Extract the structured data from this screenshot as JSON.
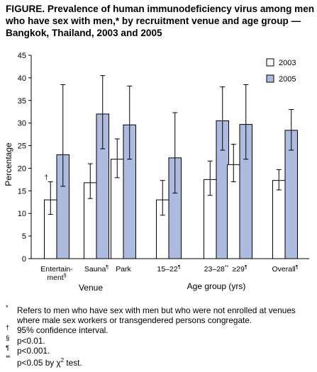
{
  "title": "FIGURE. Prevalence of human immunodeficiency virus among men who have sex with men,* by recruitment venue and age group — Bangkok, Thailand, 2003 and 2005",
  "chart_data": {
    "type": "bar",
    "ylabel": "Percentage",
    "ylim": [
      0,
      45
    ],
    "yticks": [
      0,
      5,
      10,
      15,
      20,
      25,
      30,
      35,
      40,
      45
    ],
    "grid": false,
    "legend_position": "top-right",
    "categories": [
      {
        "label": "Entertain-ment§",
        "lines": [
          "Entertain-",
          "ment"
        ],
        "mark": "§",
        "group": "Venue"
      },
      {
        "label": "Sauna¶",
        "lines": [
          "Sauna"
        ],
        "mark": "¶",
        "group": "Venue"
      },
      {
        "label": "Park",
        "lines": [
          "Park"
        ],
        "mark": "",
        "group": "Venue"
      },
      {
        "label": "15–22¶",
        "lines": [
          "15–22"
        ],
        "mark": "¶",
        "group": "Age group (yrs)"
      },
      {
        "label": "23–28**",
        "lines": [
          "23–28"
        ],
        "mark": "**",
        "group": "Age group (yrs)"
      },
      {
        "label": "≥29¶",
        "lines": [
          "≥29"
        ],
        "mark": "¶",
        "group": "Age group (yrs)"
      },
      {
        "label": "Overall¶",
        "lines": [
          "Overall"
        ],
        "mark": "¶",
        "group": ""
      }
    ],
    "groups": [
      "Venue",
      "Age group (yrs)"
    ],
    "series": [
      {
        "name": "2003",
        "color": "#ffffff",
        "values": [
          13.0,
          16.8,
          22.0,
          13.0,
          17.5,
          20.8,
          17.3
        ],
        "ci_low": [
          9.8,
          13.3,
          17.9,
          9.6,
          14.0,
          17.0,
          15.2
        ],
        "ci_high": [
          17.0,
          21.0,
          26.5,
          17.3,
          21.6,
          25.3,
          19.7
        ]
      },
      {
        "name": "2005",
        "color": "#aebbe0",
        "values": [
          23.0,
          32.0,
          29.6,
          22.3,
          30.5,
          29.7,
          28.4
        ],
        "ci_low": [
          16.0,
          24.3,
          22.0,
          14.5,
          24.0,
          22.0,
          24.0
        ],
        "ci_high": [
          38.5,
          40.5,
          38.2,
          32.3,
          38.0,
          38.5,
          33.0
        ]
      }
    ],
    "annotation": "†"
  },
  "footnotes": [
    {
      "mark": "*",
      "text": "Refers to men who have sex with men but who were not enrolled at venues where male sex workers or transgendered persons congregate."
    },
    {
      "mark": "†",
      "text": "95% confidence interval."
    },
    {
      "mark": "§",
      "text": "p<0.01."
    },
    {
      "mark": "¶",
      "text": "p<0.001."
    },
    {
      "mark": "**",
      "text": "p<0.05 by χ",
      "sup": "2",
      "tail": " test."
    }
  ]
}
